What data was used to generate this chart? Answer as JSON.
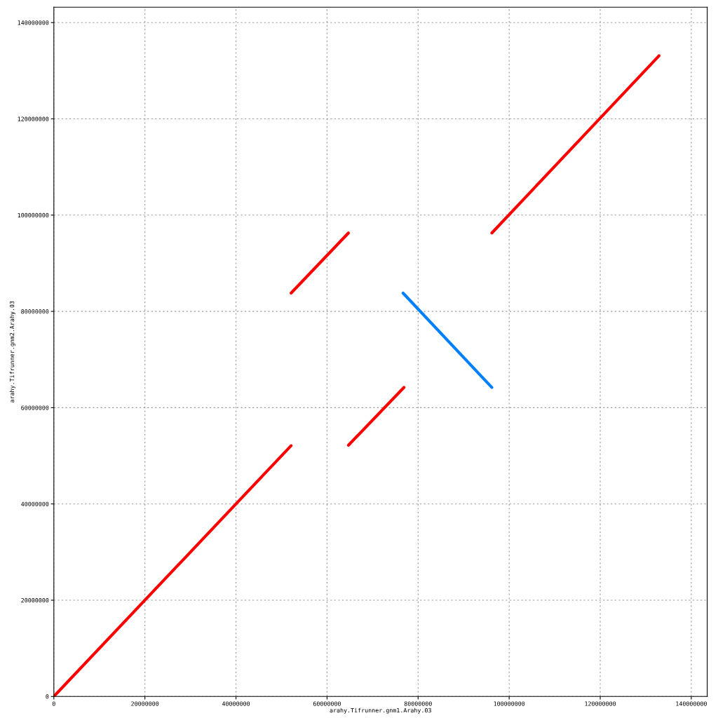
{
  "chart_data": {
    "type": "line",
    "xlabel": "arahy.Tifrunner.gnm1.Arahy.03",
    "ylabel": "arahy.Tifrunner.gnm2.Arahy.03",
    "xlim": [
      0,
      143500000
    ],
    "ylim": [
      0,
      143200000
    ],
    "xticks": [
      0,
      20000000,
      40000000,
      60000000,
      80000000,
      100000000,
      120000000,
      140000000
    ],
    "yticks": [
      0,
      20000000,
      40000000,
      60000000,
      80000000,
      100000000,
      120000000,
      140000000
    ],
    "grid": true,
    "marker": "none",
    "line_style": "solid",
    "series": [
      {
        "color": "#ff0000",
        "x": [
          0,
          52100000
        ],
        "values": [
          0,
          52100000
        ]
      },
      {
        "color": "#ff0000",
        "x": [
          52100000,
          64700000
        ],
        "values": [
          83800000,
          96300000
        ]
      },
      {
        "color": "#ff0000",
        "x": [
          64700000,
          76900000
        ],
        "values": [
          52200000,
          64200000
        ]
      },
      {
        "color": "#0080ff",
        "x": [
          76700000,
          96200000
        ],
        "values": [
          83800000,
          64200000
        ]
      },
      {
        "color": "#ff0000",
        "x": [
          96200000,
          132900000
        ],
        "values": [
          96300000,
          133100000
        ]
      }
    ]
  }
}
